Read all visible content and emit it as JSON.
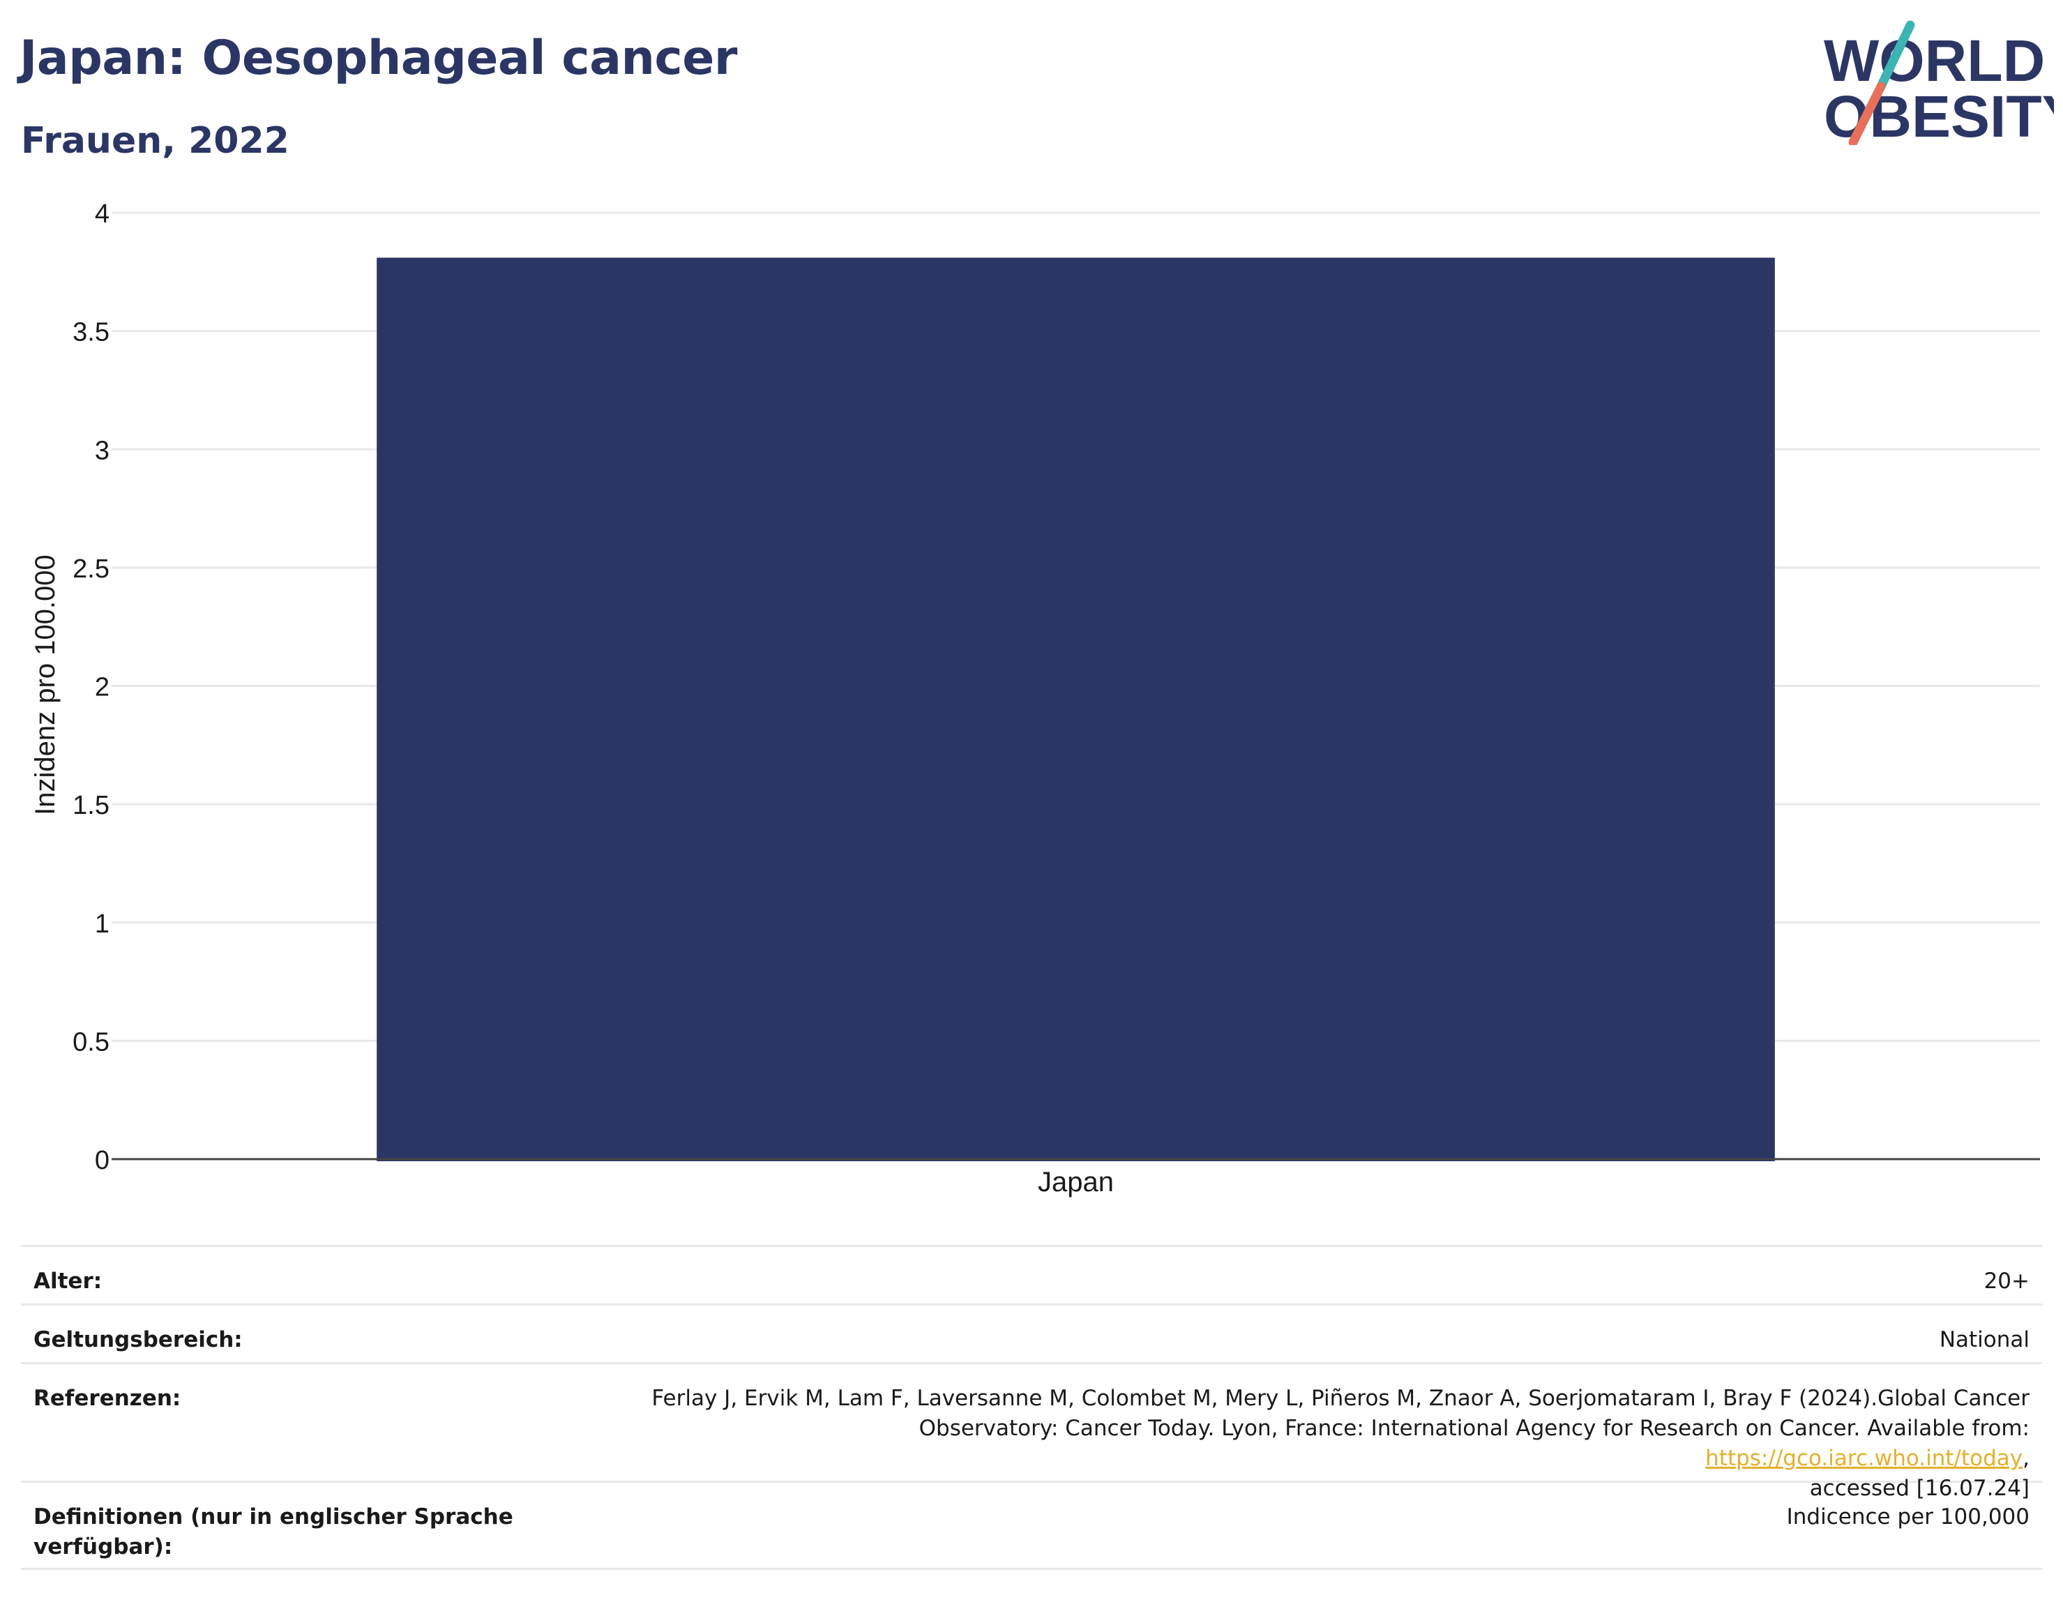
{
  "header": {
    "title": "Japan: Oesophageal cancer",
    "subtitle": "Frauen, 2022"
  },
  "logo": {
    "line1": "WORLD",
    "line2": "OBESITY",
    "slash_colors": [
      "#3cb4b4",
      "#e8705a"
    ],
    "text_color": "#2b3664"
  },
  "chart_data": {
    "type": "bar",
    "categories": [
      "Japan"
    ],
    "values": [
      3.81
    ],
    "title": "Japan: Oesophageal cancer",
    "subtitle": "Frauen, 2022",
    "xlabel": "",
    "ylabel": "Inzidenz pro 100.000",
    "ylim": [
      0,
      4
    ],
    "yticks": [
      0,
      0.5,
      1,
      1.5,
      2,
      2.5,
      3,
      3.5,
      4
    ],
    "ytick_labels": [
      "0",
      "0.5",
      "1",
      "1.5",
      "2",
      "2.5",
      "3",
      "3.5",
      "4"
    ],
    "grid": true,
    "legend": "none",
    "bar_color": "#2b3664"
  },
  "meta": {
    "age": {
      "label": "Alter:",
      "value": "20+"
    },
    "scope": {
      "label": "Geltungsbereich:",
      "value": "National"
    },
    "references": {
      "label": "Referenzen:",
      "text_line1": "Ferlay J, Ervik M, Lam F, Laversanne M, Colombet M, Mery L, Piñeros M, Znaor A, Soerjomataram I, Bray F (2024).Global Cancer",
      "text_line2": "Observatory: Cancer Today. Lyon, France: International Agency for Research on Cancer. Available from: ",
      "link": "https://gco.iarc.who.int/today",
      "text_line3": ",",
      "text_line4": "accessed [16.07.24]"
    },
    "definitions": {
      "label": "Definitionen (nur in englischer Sprache verfügbar):",
      "value": "Indicence per 100,000"
    }
  }
}
